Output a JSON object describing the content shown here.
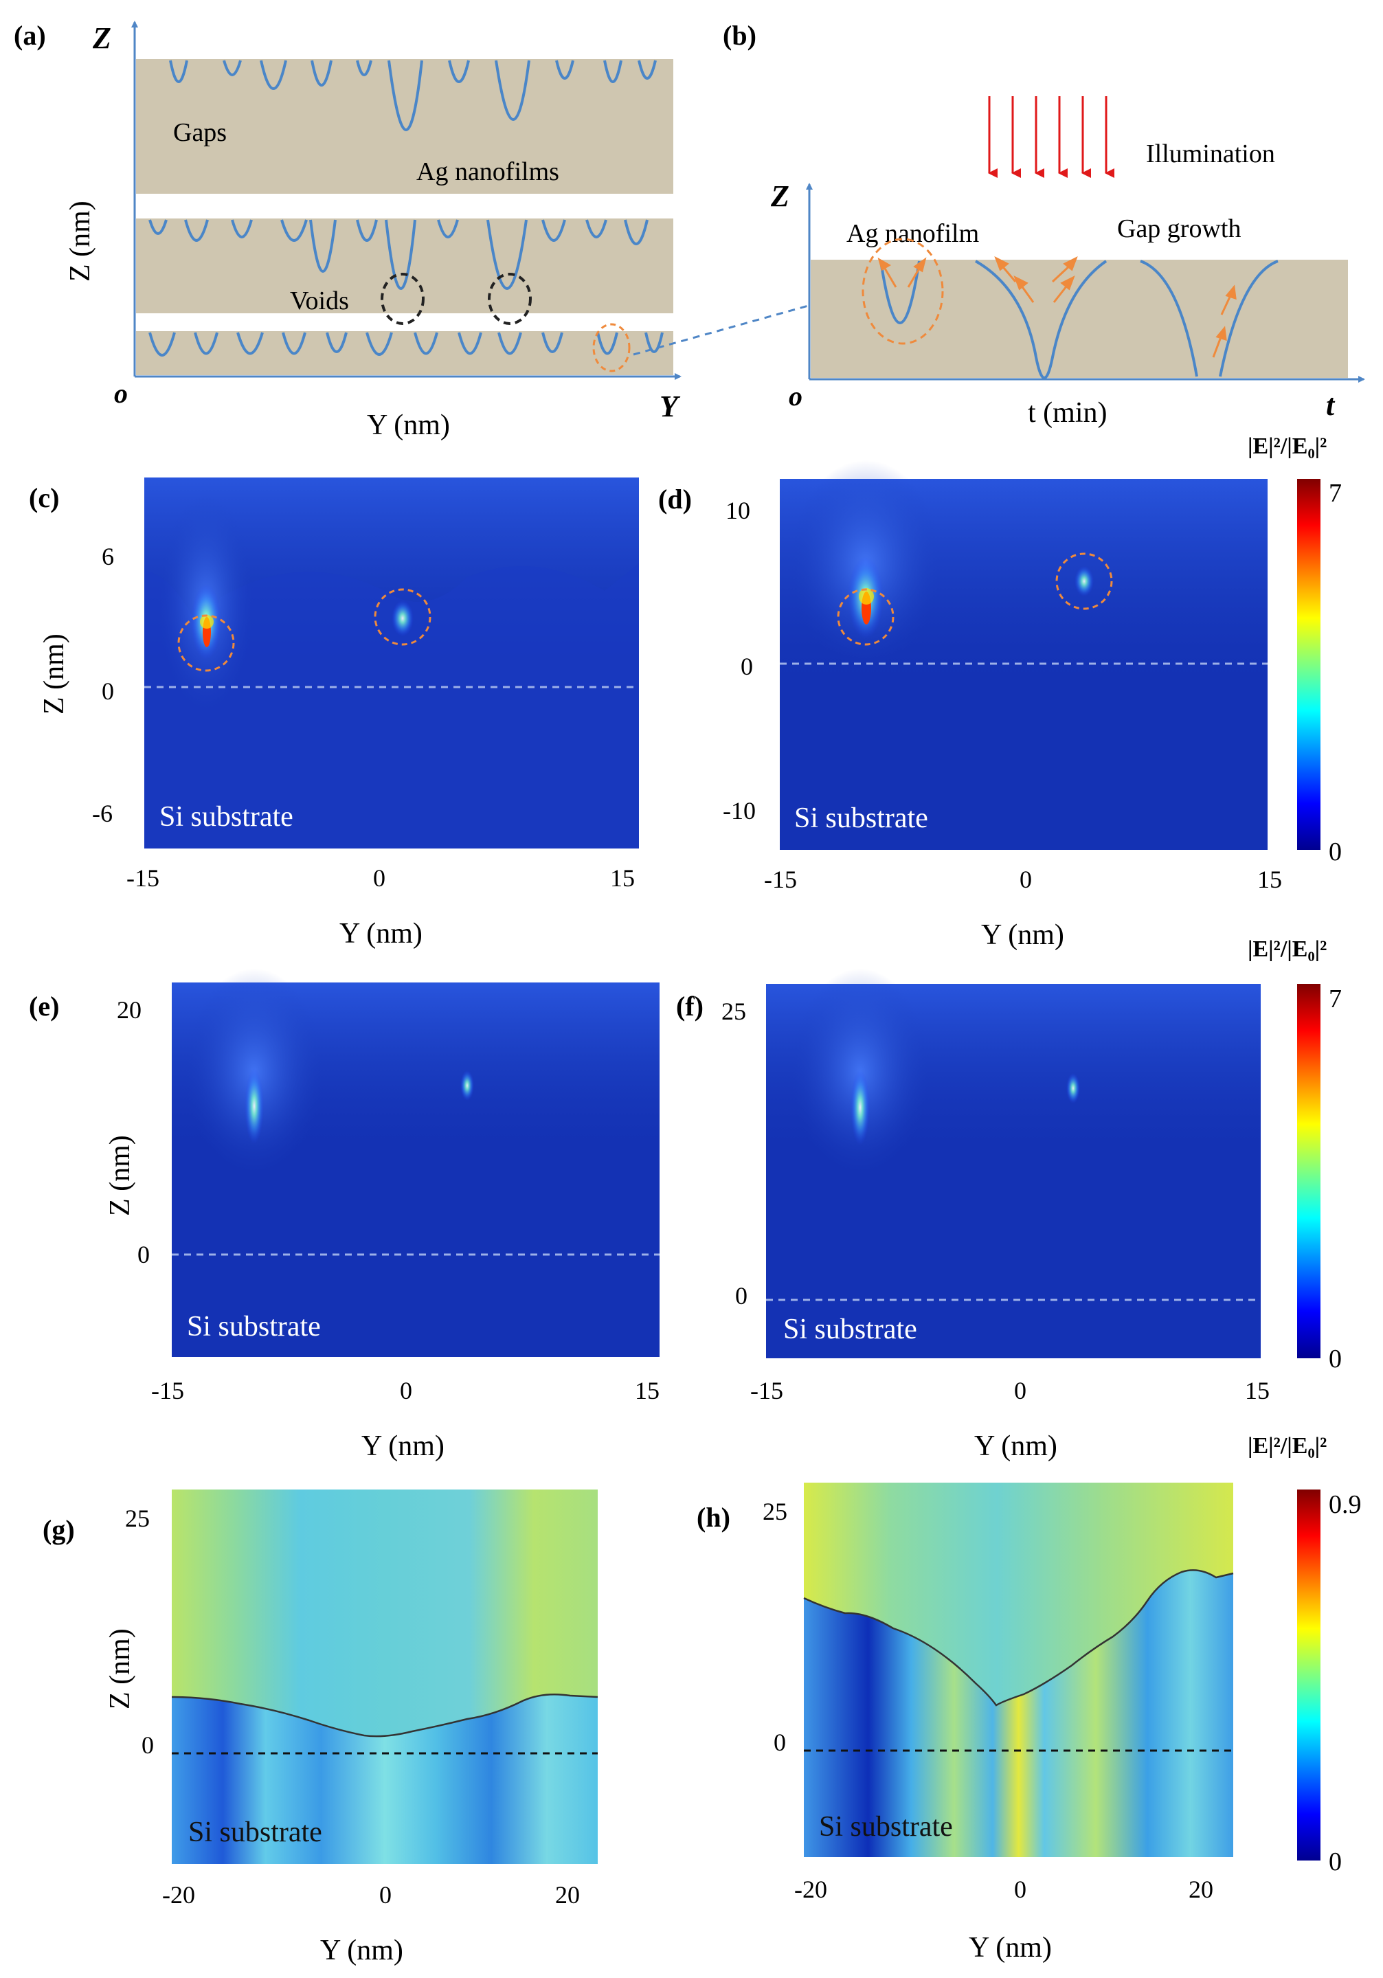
{
  "panels": {
    "a": {
      "label": "(a)",
      "axis_z": "Z",
      "axis_y": "Y",
      "origin": "o",
      "xlabel": "Y (nm)",
      "ylabel": "Z (nm)",
      "annotations": {
        "gaps": "Gaps",
        "nanofilms": "Ag nanofilms",
        "voids": "Voids"
      }
    },
    "b": {
      "label": "(b)",
      "axis_z": "Z",
      "axis_t": "t",
      "origin": "o",
      "xlabel": "t (min)",
      "annotations": {
        "illumination": "Illumination",
        "nanofilm": "Ag nanofilm",
        "gap_growth": "Gap growth"
      }
    },
    "c": {
      "label": "(c)",
      "substrate": "Si substrate",
      "xlabel": "Y (nm)",
      "ylabel": "Z (nm)",
      "xticks": [
        "-15",
        "0",
        "15"
      ],
      "yticks": [
        "6",
        "0",
        "-6"
      ]
    },
    "d": {
      "label": "(d)",
      "substrate": "Si substrate",
      "xlabel": "Y (nm)",
      "xticks": [
        "-15",
        "0",
        "15"
      ],
      "yticks": [
        "10",
        "0",
        "-10"
      ]
    },
    "e": {
      "label": "(e)",
      "substrate": "Si substrate",
      "xlabel": "Y (nm)",
      "ylabel": "Z (nm)",
      "xticks": [
        "-15",
        "0",
        "15"
      ],
      "yticks": [
        "20",
        "0"
      ]
    },
    "f": {
      "label": "(f)",
      "substrate": "Si substrate",
      "xlabel": "Y (nm)",
      "xticks": [
        "-15",
        "0",
        "15"
      ],
      "yticks": [
        "25",
        "0"
      ]
    },
    "g": {
      "label": "(g)",
      "substrate": "Si substrate",
      "xlabel": "Y (nm)",
      "ylabel": "Z (nm)",
      "xticks": [
        "-20",
        "0",
        "20"
      ],
      "yticks": [
        "25",
        "0"
      ]
    },
    "h": {
      "label": "(h)",
      "substrate": "Si substrate",
      "xlabel": "Y (nm)",
      "xticks": [
        "-20",
        "0",
        "20"
      ],
      "yticks": [
        "25",
        "0"
      ]
    }
  },
  "colorbars": [
    {
      "title": "|E|²/|E₀|²",
      "max": "7",
      "min": "0"
    },
    {
      "title": "|E|²/|E₀|²",
      "max": "7",
      "min": "0"
    },
    {
      "title": "|E|²/|E₀|²",
      "max": "0.9",
      "min": "0"
    }
  ],
  "colors": {
    "film": "#cfc6b0",
    "axis_blue": "#4f86c6",
    "arrow_red": "#e0191a",
    "arrow_orange": "#ef8a3c",
    "field_dark": "#1432b4"
  }
}
